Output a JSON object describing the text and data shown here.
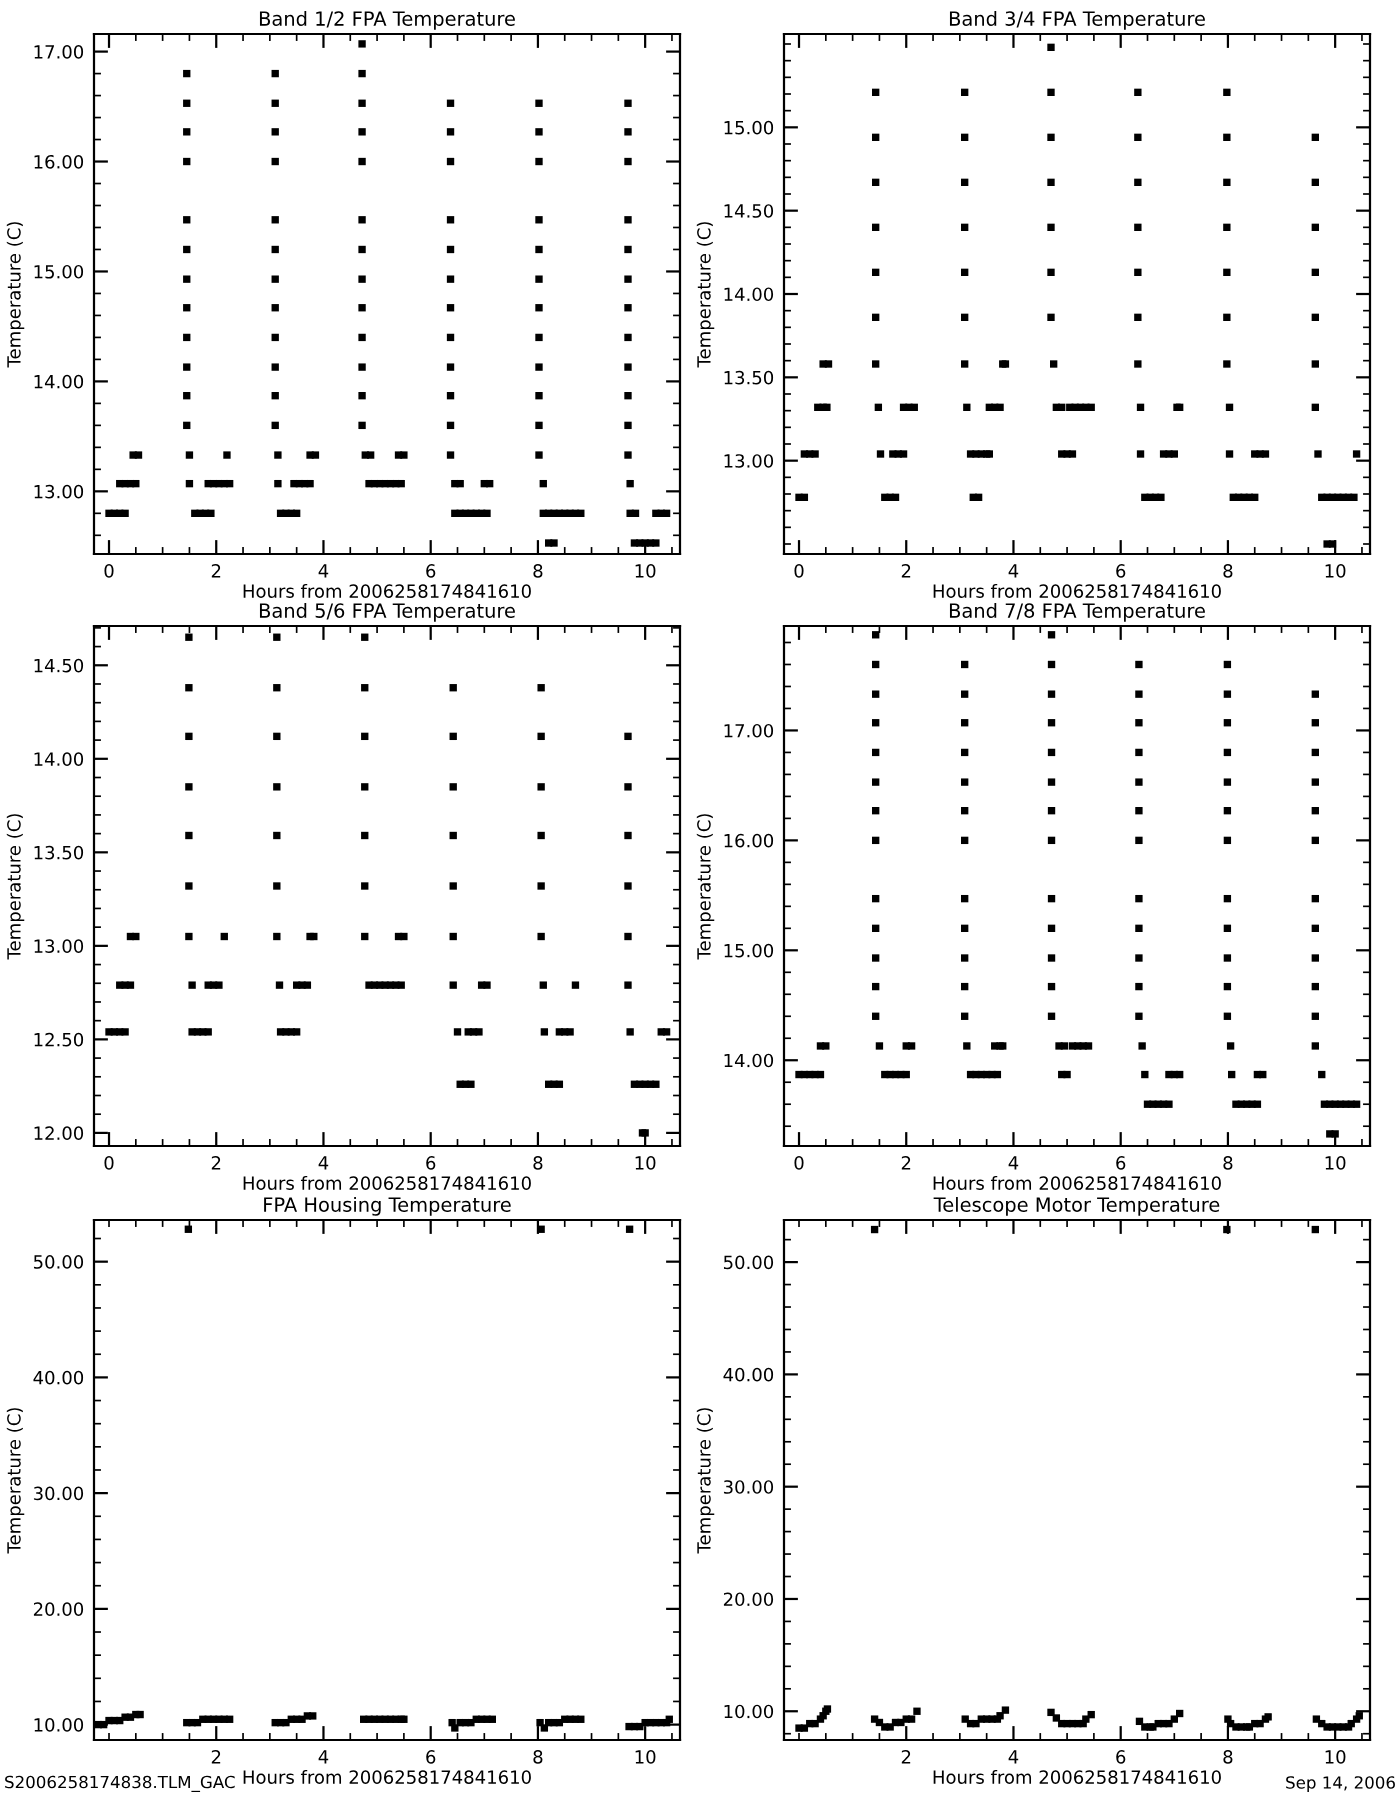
{
  "chart_data": [
    {
      "type": "scatter",
      "title": "Band 1/2 FPA Temperature",
      "xlabel": "Hours from 2006258174841610",
      "ylabel": "Temperature (C)",
      "marker": "square",
      "xlim": [
        -0.28,
        10.65
      ],
      "ylim": [
        12.43,
        17.16
      ],
      "xticks": [
        0,
        2,
        4,
        6,
        8,
        10
      ],
      "yticks": [
        {
          "value": 13,
          "label": "13.00"
        },
        {
          "value": 14,
          "label": "14.00"
        },
        {
          "value": 15,
          "label": "15.00"
        },
        {
          "value": 16,
          "label": "16.00"
        },
        {
          "value": 17,
          "label": "17.00"
        }
      ],
      "series": [
        {
          "color": "#000000",
          "x": [
            0,
            0.1,
            0.2,
            0.3,
            0.2,
            0.3,
            0.4,
            0.5,
            0.45,
            0.55,
            1.45,
            1.45,
            1.45,
            1.45,
            1.45,
            1.45,
            1.45,
            1.45,
            1.45,
            1.45,
            1.45,
            1.45,
            1.5,
            1.5,
            1.6,
            1.7,
            1.8,
            1.9,
            1.85,
            1.95,
            2.05,
            2.15,
            2.25,
            2.2,
            3.1,
            3.1,
            3.1,
            3.1,
            3.1,
            3.1,
            3.1,
            3.1,
            3.1,
            3.1,
            3.1,
            3.1,
            3.15,
            3.15,
            3.2,
            3.3,
            3.4,
            3.5,
            3.45,
            3.55,
            3.65,
            3.75,
            3.75,
            3.85,
            4.72,
            4.72,
            4.72,
            4.72,
            4.72,
            4.72,
            4.72,
            4.72,
            4.72,
            4.72,
            4.72,
            4.72,
            4.72,
            4.78,
            4.88,
            4.85,
            4.95,
            5.05,
            5.15,
            5.25,
            5.35,
            5.45,
            5.4,
            5.5,
            6.37,
            6.37,
            6.37,
            6.37,
            6.37,
            6.37,
            6.37,
            6.37,
            6.37,
            6.37,
            6.37,
            6.37,
            6.45,
            6.55,
            6.45,
            6.55,
            6.65,
            6.75,
            6.85,
            6.95,
            7.05,
            7.0,
            7.1,
            8.02,
            8.02,
            8.02,
            8.02,
            8.02,
            8.02,
            8.02,
            8.02,
            8.02,
            8.02,
            8.02,
            8.02,
            8.1,
            8.1,
            8.2,
            8.3,
            8.4,
            8.5,
            8.6,
            8.7,
            8.8,
            8.2,
            8.3,
            9.68,
            9.68,
            9.68,
            9.68,
            9.68,
            9.68,
            9.68,
            9.68,
            9.68,
            9.68,
            9.68,
            9.68,
            9.72,
            9.72,
            9.82,
            10.2,
            10.3,
            10.4,
            9.8,
            9.9,
            10.0,
            10.1,
            10.2
          ],
          "values": [
            12.8,
            12.8,
            12.8,
            12.8,
            13.07,
            13.07,
            13.07,
            13.07,
            13.33,
            13.33,
            13.6,
            13.87,
            14.13,
            14.4,
            14.67,
            14.93,
            15.2,
            15.47,
            16.0,
            16.27,
            16.53,
            16.8,
            13.07,
            13.33,
            12.8,
            12.8,
            12.8,
            12.8,
            13.07,
            13.07,
            13.07,
            13.07,
            13.07,
            13.33,
            13.6,
            13.87,
            14.13,
            14.4,
            14.67,
            14.93,
            15.2,
            15.47,
            16.0,
            16.27,
            16.53,
            16.8,
            13.07,
            13.33,
            12.8,
            12.8,
            12.8,
            12.8,
            13.07,
            13.07,
            13.07,
            13.07,
            13.33,
            13.33,
            13.6,
            13.87,
            14.13,
            14.4,
            14.67,
            14.93,
            15.2,
            15.47,
            16.0,
            16.27,
            16.53,
            16.8,
            17.07,
            13.33,
            13.33,
            13.07,
            13.07,
            13.07,
            13.07,
            13.07,
            13.07,
            13.07,
            13.33,
            13.33,
            13.33,
            13.6,
            13.87,
            14.13,
            14.4,
            14.67,
            14.93,
            15.2,
            15.47,
            16.0,
            16.27,
            16.53,
            13.07,
            13.07,
            12.8,
            12.8,
            12.8,
            12.8,
            12.8,
            12.8,
            12.8,
            13.07,
            13.07,
            13.33,
            13.6,
            13.87,
            14.13,
            14.4,
            14.67,
            14.93,
            15.2,
            15.47,
            16.0,
            16.27,
            16.53,
            13.07,
            12.8,
            12.8,
            12.8,
            12.8,
            12.8,
            12.8,
            12.8,
            12.8,
            12.53,
            12.53,
            13.33,
            13.6,
            13.87,
            14.13,
            14.4,
            14.67,
            14.93,
            15.2,
            15.47,
            16.0,
            16.27,
            16.53,
            13.07,
            12.8,
            12.8,
            12.8,
            12.8,
            12.8,
            12.53,
            12.53,
            12.53,
            12.53,
            12.53
          ]
        }
      ]
    },
    {
      "type": "scatter",
      "title": "Band 3/4 FPA Temperature",
      "xlabel": "Hours from 2006258174841610",
      "ylabel": "Temperature (C)",
      "marker": "square",
      "xlim": [
        -0.28,
        10.65
      ],
      "ylim": [
        12.44,
        15.56
      ],
      "xticks": [
        0,
        2,
        4,
        6,
        8,
        10
      ],
      "yticks": [
        {
          "value": 13,
          "label": "13.00"
        },
        {
          "value": 13.5,
          "label": "13.50"
        },
        {
          "value": 14,
          "label": "14.00"
        },
        {
          "value": 14.5,
          "label": "14.50"
        },
        {
          "value": 15,
          "label": "15.00"
        }
      ],
      "series": [
        {
          "color": "#000000",
          "x": [
            0,
            0.1,
            0.1,
            0.2,
            0.3,
            0.35,
            0.45,
            0.52,
            0.45,
            0.55,
            1.43,
            1.43,
            1.43,
            1.43,
            1.43,
            1.43,
            1.43,
            1.48,
            1.52,
            1.6,
            1.7,
            1.8,
            1.75,
            1.85,
            1.95,
            1.95,
            2.05,
            2.15,
            3.09,
            3.09,
            3.09,
            3.09,
            3.09,
            3.09,
            3.09,
            3.13,
            3.2,
            3.3,
            3.4,
            3.5,
            3.55,
            3.25,
            3.35,
            3.55,
            3.65,
            3.75,
            3.8,
            3.85,
            4.7,
            4.7,
            4.7,
            4.7,
            4.7,
            4.7,
            4.7,
            4.75,
            4.8,
            4.9,
            4.9,
            5.0,
            5.1,
            5.05,
            5.15,
            5.25,
            5.35,
            5.45,
            6.32,
            6.32,
            6.32,
            6.32,
            6.32,
            6.32,
            6.32,
            6.37,
            6.37,
            6.45,
            6.55,
            6.65,
            6.75,
            6.8,
            6.9,
            7.0,
            7.05,
            7.1,
            7.98,
            7.98,
            7.98,
            7.98,
            7.98,
            7.98,
            7.98,
            8.03,
            8.03,
            8.1,
            8.2,
            8.3,
            8.4,
            8.5,
            8.5,
            8.6,
            8.7,
            9.63,
            9.63,
            9.63,
            9.63,
            9.63,
            9.63,
            9.63,
            9.68,
            9.75,
            9.85,
            9.95,
            10.05,
            10.15,
            10.25,
            10.35,
            9.85,
            9.95,
            10.4
          ],
          "values": [
            12.78,
            12.78,
            13.04,
            13.04,
            13.04,
            13.32,
            13.32,
            13.32,
            13.58,
            13.58,
            13.58,
            13.86,
            14.13,
            14.4,
            14.67,
            14.94,
            15.21,
            13.32,
            13.04,
            12.78,
            12.78,
            12.78,
            13.04,
            13.04,
            13.04,
            13.32,
            13.32,
            13.32,
            13.58,
            13.86,
            14.13,
            14.4,
            14.67,
            14.94,
            15.21,
            13.32,
            13.04,
            13.04,
            13.04,
            13.04,
            13.04,
            12.78,
            12.78,
            13.32,
            13.32,
            13.32,
            13.58,
            13.58,
            13.86,
            14.13,
            14.4,
            14.67,
            14.94,
            15.21,
            15.48,
            13.58,
            13.32,
            13.32,
            13.04,
            13.04,
            13.04,
            13.32,
            13.32,
            13.32,
            13.32,
            13.32,
            13.58,
            13.86,
            14.13,
            14.4,
            14.67,
            14.94,
            15.21,
            13.32,
            13.04,
            12.78,
            12.78,
            12.78,
            12.78,
            13.04,
            13.04,
            13.04,
            13.32,
            13.32,
            13.58,
            13.86,
            14.13,
            14.4,
            14.67,
            14.94,
            15.21,
            13.32,
            13.04,
            12.78,
            12.78,
            12.78,
            12.78,
            12.78,
            13.04,
            13.04,
            13.04,
            13.58,
            13.86,
            14.13,
            14.4,
            14.67,
            14.94,
            13.32,
            13.04,
            12.78,
            12.78,
            12.78,
            12.78,
            12.78,
            12.78,
            12.78,
            12.5,
            12.5,
            13.04
          ]
        }
      ]
    },
    {
      "type": "scatter",
      "title": "Band 5/6 FPA Temperature",
      "xlabel": "Hours from 2006258174841610",
      "ylabel": "Temperature (C)",
      "marker": "square",
      "xlim": [
        -0.28,
        10.65
      ],
      "ylim": [
        11.93,
        14.71
      ],
      "xticks": [
        0,
        2,
        4,
        6,
        8,
        10
      ],
      "yticks": [
        {
          "value": 12,
          "label": "12.00"
        },
        {
          "value": 12.5,
          "label": "12.50"
        },
        {
          "value": 13,
          "label": "13.00"
        },
        {
          "value": 13.5,
          "label": "13.50"
        },
        {
          "value": 14,
          "label": "14.00"
        },
        {
          "value": 14.5,
          "label": "14.50"
        }
      ],
      "series": [
        {
          "color": "#000000",
          "x": [
            0,
            0.1,
            0.2,
            0.3,
            0.2,
            0.3,
            0.4,
            0.4,
            0.5,
            1.49,
            1.49,
            1.49,
            1.49,
            1.49,
            1.49,
            1.49,
            1.55,
            1.55,
            1.65,
            1.75,
            1.85,
            1.85,
            1.95,
            2.05,
            2.15,
            3.13,
            3.13,
            3.13,
            3.13,
            3.13,
            3.13,
            3.13,
            3.18,
            3.2,
            3.3,
            3.4,
            3.5,
            3.5,
            3.6,
            3.7,
            3.75,
            3.82,
            4.77,
            4.77,
            4.77,
            4.77,
            4.77,
            4.77,
            4.77,
            4.85,
            4.95,
            5.05,
            5.15,
            5.25,
            5.35,
            5.45,
            5.4,
            5.5,
            6.42,
            6.42,
            6.42,
            6.42,
            6.42,
            6.42,
            6.42,
            6.5,
            6.55,
            6.65,
            6.75,
            6.7,
            6.8,
            6.9,
            6.95,
            7.05,
            8.06,
            8.06,
            8.06,
            8.06,
            8.06,
            8.06,
            8.1,
            8.12,
            8.2,
            8.3,
            8.4,
            8.4,
            8.5,
            8.6,
            8.7,
            9.68,
            9.68,
            9.68,
            9.68,
            9.68,
            9.68,
            9.72,
            9.8,
            9.9,
            10.0,
            10.1,
            10.2,
            9.95,
            10.0,
            10.3,
            10.4
          ],
          "values": [
            12.54,
            12.54,
            12.54,
            12.54,
            12.79,
            12.79,
            12.79,
            13.05,
            13.05,
            13.05,
            13.32,
            13.59,
            13.85,
            14.12,
            14.38,
            14.65,
            12.79,
            12.54,
            12.54,
            12.54,
            12.54,
            12.79,
            12.79,
            12.79,
            13.05,
            13.05,
            13.32,
            13.59,
            13.85,
            14.12,
            14.38,
            14.65,
            12.79,
            12.54,
            12.54,
            12.54,
            12.54,
            12.79,
            12.79,
            12.79,
            13.05,
            13.05,
            13.05,
            13.32,
            13.59,
            13.85,
            14.12,
            14.38,
            14.65,
            12.79,
            12.79,
            12.79,
            12.79,
            12.79,
            12.79,
            12.79,
            13.05,
            13.05,
            13.05,
            13.32,
            13.59,
            13.85,
            14.12,
            14.38,
            12.79,
            12.54,
            12.26,
            12.26,
            12.26,
            12.54,
            12.54,
            12.54,
            12.79,
            12.79,
            13.05,
            13.32,
            13.59,
            13.85,
            14.12,
            14.38,
            12.79,
            12.54,
            12.26,
            12.26,
            12.26,
            12.54,
            12.54,
            12.54,
            12.79,
            12.79,
            13.05,
            13.32,
            13.59,
            13.85,
            14.12,
            12.54,
            12.26,
            12.26,
            12.26,
            12.26,
            12.26,
            12.0,
            12.0,
            12.54,
            12.54
          ]
        }
      ]
    },
    {
      "type": "scatter",
      "title": "Band 7/8 FPA Temperature",
      "xlabel": "Hours from 2006258174841610",
      "ylabel": "Temperature (C)",
      "marker": "square",
      "xlim": [
        -0.28,
        10.65
      ],
      "ylim": [
        13.22,
        17.95
      ],
      "xticks": [
        0,
        2,
        4,
        6,
        8,
        10
      ],
      "yticks": [
        {
          "value": 14,
          "label": "14.00"
        },
        {
          "value": 15,
          "label": "15.00"
        },
        {
          "value": 16,
          "label": "16.00"
        },
        {
          "value": 17,
          "label": "17.00"
        }
      ],
      "series": [
        {
          "color": "#000000",
          "x": [
            0,
            0.1,
            0.2,
            0.3,
            0.4,
            0.4,
            0.5,
            1.43,
            1.43,
            1.43,
            1.43,
            1.43,
            1.43,
            1.43,
            1.43,
            1.43,
            1.43,
            1.43,
            1.43,
            1.43,
            1.5,
            1.6,
            1.7,
            1.8,
            1.9,
            2.0,
            2.0,
            2.1,
            3.09,
            3.09,
            3.09,
            3.09,
            3.09,
            3.09,
            3.09,
            3.09,
            3.09,
            3.09,
            3.09,
            3.09,
            3.13,
            3.2,
            3.3,
            3.4,
            3.5,
            3.6,
            3.7,
            3.65,
            3.75,
            3.8,
            4.71,
            4.71,
            4.71,
            4.71,
            4.71,
            4.71,
            4.71,
            4.71,
            4.71,
            4.71,
            4.71,
            4.71,
            4.71,
            4.85,
            4.95,
            4.9,
            5.0,
            5.1,
            5.2,
            5.3,
            5.4,
            6.34,
            6.34,
            6.34,
            6.34,
            6.34,
            6.34,
            6.34,
            6.34,
            6.34,
            6.34,
            6.34,
            6.34,
            6.4,
            6.45,
            6.5,
            6.6,
            6.7,
            6.8,
            6.9,
            6.9,
            7.0,
            7.1,
            7.99,
            7.99,
            7.99,
            7.99,
            7.99,
            7.99,
            7.99,
            7.99,
            7.99,
            7.99,
            7.99,
            7.99,
            8.05,
            8.07,
            8.15,
            8.25,
            8.35,
            8.45,
            8.55,
            8.55,
            8.65,
            9.63,
            9.63,
            9.63,
            9.63,
            9.63,
            9.63,
            9.63,
            9.63,
            9.63,
            9.63,
            9.63,
            9.63,
            9.75,
            9.8,
            9.9,
            10.0,
            10.1,
            10.2,
            10.3,
            10.4,
            9.9,
            10.0
          ],
          "values": [
            13.87,
            13.87,
            13.87,
            13.87,
            13.87,
            14.13,
            14.13,
            14.4,
            14.67,
            14.93,
            15.2,
            15.47,
            16.0,
            16.27,
            16.53,
            16.8,
            17.07,
            17.33,
            17.6,
            17.87,
            14.13,
            13.87,
            13.87,
            13.87,
            13.87,
            13.87,
            14.13,
            14.13,
            14.4,
            14.67,
            14.93,
            15.2,
            15.47,
            16.0,
            16.27,
            16.53,
            16.8,
            17.07,
            17.33,
            17.6,
            14.13,
            13.87,
            13.87,
            13.87,
            13.87,
            13.87,
            13.87,
            14.13,
            14.13,
            14.13,
            14.4,
            14.67,
            14.93,
            15.2,
            15.47,
            16.0,
            16.27,
            16.53,
            16.8,
            17.07,
            17.33,
            17.6,
            17.87,
            14.13,
            14.13,
            13.87,
            13.87,
            14.13,
            14.13,
            14.13,
            14.13,
            14.4,
            14.67,
            14.93,
            15.2,
            15.47,
            16.0,
            16.27,
            16.53,
            16.8,
            17.07,
            17.33,
            17.6,
            14.13,
            13.87,
            13.6,
            13.6,
            13.6,
            13.6,
            13.6,
            13.87,
            13.87,
            13.87,
            14.4,
            14.67,
            14.93,
            15.2,
            15.47,
            16.0,
            16.27,
            16.53,
            16.8,
            17.07,
            17.33,
            17.6,
            14.13,
            13.87,
            13.6,
            13.6,
            13.6,
            13.6,
            13.6,
            13.87,
            13.87,
            14.13,
            14.4,
            14.67,
            14.93,
            15.2,
            15.47,
            16.0,
            16.27,
            16.53,
            16.8,
            17.07,
            17.33,
            13.87,
            13.6,
            13.6,
            13.6,
            13.6,
            13.6,
            13.6,
            13.6,
            13.33,
            13.33
          ]
        }
      ]
    },
    {
      "type": "scatter",
      "title": "FPA Housing Temperature",
      "xlabel": "Hours from 2006258174841610",
      "ylabel": "Temperature (C)",
      "marker": "square",
      "xlim": [
        -0.28,
        10.65
      ],
      "ylim": [
        8.67,
        53.6
      ],
      "xticks": [
        2,
        4,
        6,
        8,
        10
      ],
      "yticks": [
        {
          "value": 10,
          "label": "10.00"
        },
        {
          "value": 20,
          "label": "20.00"
        },
        {
          "value": 30,
          "label": "30.00"
        },
        {
          "value": 40,
          "label": "40.00"
        },
        {
          "value": 50,
          "label": "50.00"
        }
      ],
      "annotations": [
        "S2006258174838.TLM_GAC"
      ],
      "series": [
        {
          "color": "#000000",
          "x": [
            -0.2,
            -0.1,
            0,
            0.1,
            0.2,
            0.3,
            0.4,
            0.5,
            0.58,
            1.48,
            1.45,
            1.55,
            1.65,
            1.75,
            1.85,
            1.95,
            2.05,
            2.15,
            2.25,
            3.1,
            3.2,
            3.3,
            3.4,
            3.5,
            3.6,
            3.7,
            3.8,
            4.75,
            4.85,
            4.95,
            5.05,
            5.15,
            5.25,
            5.35,
            5.45,
            5.5,
            6.4,
            6.45,
            6.55,
            6.65,
            6.75,
            6.85,
            6.95,
            7.05,
            7.15,
            8.06,
            8.04,
            8.12,
            8.2,
            8.3,
            8.4,
            8.5,
            8.6,
            8.7,
            8.8,
            9.71,
            9.7,
            9.8,
            9.9,
            10.0,
            10.1,
            10.2,
            10.3,
            10.4,
            10.45
          ],
          "values": [
            10.0,
            10.0,
            10.35,
            10.35,
            10.35,
            10.64,
            10.64,
            10.87,
            10.87,
            52.8,
            10.17,
            10.17,
            10.17,
            10.46,
            10.46,
            10.46,
            10.46,
            10.46,
            10.46,
            10.17,
            10.17,
            10.17,
            10.46,
            10.46,
            10.46,
            10.75,
            10.75,
            10.46,
            10.46,
            10.46,
            10.46,
            10.46,
            10.46,
            10.46,
            10.46,
            10.46,
            10.17,
            9.71,
            10.17,
            10.17,
            10.17,
            10.46,
            10.46,
            10.46,
            10.46,
            52.8,
            10.17,
            9.71,
            10.17,
            10.17,
            10.17,
            10.46,
            10.46,
            10.46,
            10.46,
            52.8,
            9.83,
            9.83,
            9.83,
            10.17,
            10.17,
            10.17,
            10.17,
            10.17,
            10.46
          ]
        }
      ]
    },
    {
      "type": "scatter",
      "title": "Telescope Motor Temperature",
      "xlabel": "Hours from 2006258174841610",
      "ylabel": "Temperature (C)",
      "marker": "square",
      "xlim": [
        -0.28,
        10.65
      ],
      "ylim": [
        7.44,
        53.75
      ],
      "xticks": [
        2,
        4,
        6,
        8,
        10
      ],
      "yticks": [
        {
          "value": 10,
          "label": "10.00"
        },
        {
          "value": 20,
          "label": "20.00"
        },
        {
          "value": 30,
          "label": "30.00"
        },
        {
          "value": 40,
          "label": "40.00"
        },
        {
          "value": 50,
          "label": "50.00"
        }
      ],
      "annotations": [
        "Sep 14, 2006"
      ],
      "series": [
        {
          "color": "#000000",
          "x": [
            0,
            0.1,
            0.2,
            0.3,
            0.4,
            0.45,
            0.5,
            0.53,
            1.41,
            1.41,
            1.5,
            1.6,
            1.7,
            1.8,
            1.9,
            2.0,
            2.1,
            2.2,
            3.1,
            3.2,
            3.3,
            3.4,
            3.5,
            3.6,
            3.7,
            3.75,
            3.85,
            4.7,
            4.8,
            4.9,
            5.0,
            5.1,
            5.2,
            5.3,
            5.35,
            5.45,
            6.35,
            6.45,
            6.55,
            6.6,
            6.7,
            6.8,
            6.9,
            7.0,
            7.1,
            7.98,
            8.0,
            8.05,
            8.15,
            8.25,
            8.35,
            8.4,
            8.5,
            8.6,
            8.7,
            8.75,
            9.63,
            9.65,
            9.75,
            9.85,
            9.95,
            10.05,
            10.15,
            10.25,
            10.3,
            10.4,
            10.45
          ],
          "values": [
            8.5,
            8.5,
            8.9,
            8.9,
            9.3,
            9.6,
            10.0,
            10.2,
            52.9,
            9.3,
            9.0,
            8.6,
            8.6,
            9.0,
            9.0,
            9.3,
            9.3,
            10.0,
            9.3,
            8.9,
            8.9,
            9.3,
            9.3,
            9.3,
            9.3,
            9.6,
            10.1,
            9.9,
            9.4,
            8.9,
            8.9,
            8.9,
            8.9,
            8.9,
            9.3,
            9.7,
            9.1,
            8.6,
            8.6,
            8.6,
            8.9,
            8.9,
            8.9,
            9.3,
            9.8,
            52.9,
            9.3,
            8.9,
            8.6,
            8.6,
            8.6,
            8.6,
            8.9,
            8.9,
            9.3,
            9.5,
            52.9,
            9.3,
            8.9,
            8.6,
            8.6,
            8.6,
            8.6,
            8.6,
            8.9,
            9.3,
            9.6
          ]
        }
      ]
    }
  ]
}
